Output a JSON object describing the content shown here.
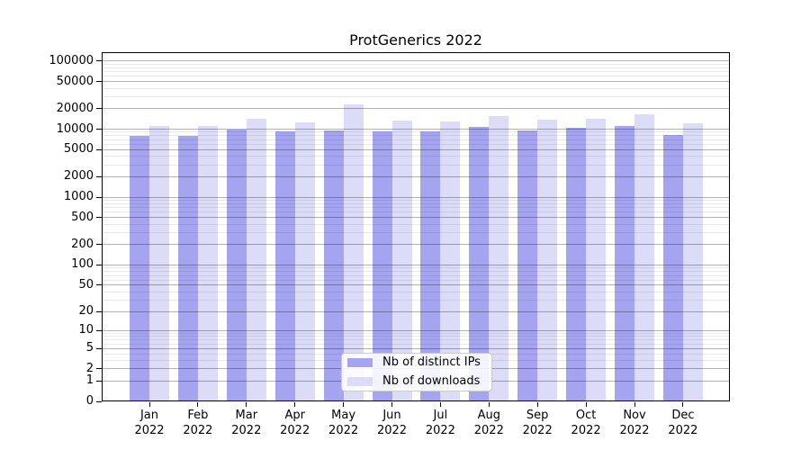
{
  "title": "ProtGenerics 2022",
  "chart_data": {
    "type": "bar",
    "title": "ProtGenerics 2022",
    "scale": "log10(v+1)",
    "ylim": [
      0,
      135000
    ],
    "y_ticks": [
      0,
      1,
      2,
      5,
      10,
      20,
      50,
      100,
      200,
      500,
      1000,
      2000,
      5000,
      10000,
      20000,
      50000,
      100000
    ],
    "grid": "on",
    "legend_position": "lower center",
    "categories": [
      "Jan 2022",
      "Feb 2022",
      "Mar 2022",
      "Apr 2022",
      "May 2022",
      "Jun 2022",
      "Jul 2022",
      "Aug 2022",
      "Sep 2022",
      "Oct 2022",
      "Nov 2022",
      "Dec 2022"
    ],
    "series": [
      {
        "name": "Nb of distinct IPs",
        "color": "#a4a4f0",
        "values": [
          7900,
          7900,
          9900,
          9200,
          9600,
          9200,
          9200,
          10900,
          9700,
          10400,
          11300,
          8200
        ]
      },
      {
        "name": "Nb of downloads",
        "color": "#dcdcf8",
        "values": [
          11100,
          11300,
          14200,
          12400,
          22800,
          13500,
          13100,
          15500,
          13700,
          14200,
          16700,
          12300
        ]
      }
    ]
  }
}
